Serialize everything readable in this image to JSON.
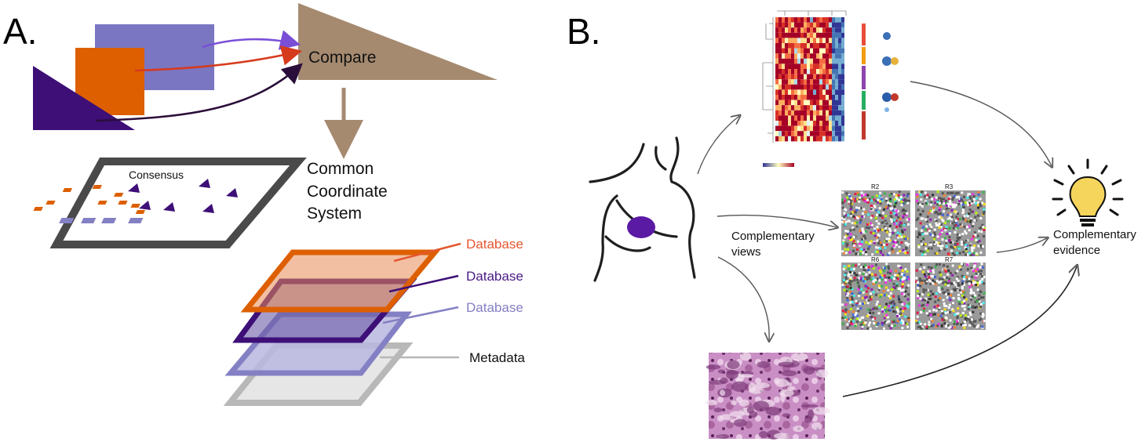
{
  "panel_a": {
    "letter": "A.",
    "compare_label": "Compare",
    "consensus_label": "Consensus",
    "ccs_lines": [
      "Common",
      "Coordinate",
      "System"
    ],
    "layers": [
      {
        "label": "Database",
        "color": "#e4572e"
      },
      {
        "label": "Database",
        "color": "#4b1a85"
      },
      {
        "label": "Database",
        "color": "#8480c4"
      },
      {
        "label": "Metadata",
        "color": "#111111"
      }
    ]
  },
  "panel_b": {
    "letter": "B.",
    "views_lines": [
      "Complementary",
      "views"
    ],
    "evidence_lines": [
      "Complementary",
      "evidence"
    ],
    "region_labels": [
      "R2",
      "R3",
      "R6",
      "R7"
    ]
  },
  "colors": {
    "orange": "#dd5f00",
    "purple_dark": "#3d0f77",
    "lavender": "#7b76c0",
    "tan": "#a58a70",
    "bulb": "#f6d55c"
  }
}
